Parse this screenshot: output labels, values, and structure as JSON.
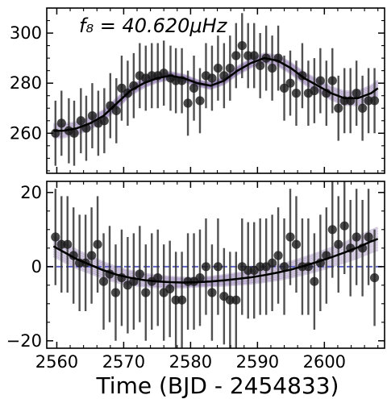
{
  "chart_data": [
    {
      "type": "scatter",
      "panel": "top",
      "annotation": "f₈ = 40.620μHz",
      "xlim": [
        2558.5,
        2609
      ],
      "ylim": [
        244,
        310
      ],
      "yticks": [
        260,
        280,
        300
      ],
      "xticks": [
        2560,
        2570,
        2580,
        2590,
        2600
      ],
      "x_tick_labels_visible": false,
      "grid": false,
      "colors": {
        "points": "#1a1a1a",
        "errorbars": "#333333",
        "model": "#000000",
        "samples": "#6a4c9c"
      },
      "series": [
        {
          "kind": "data_with_errors",
          "x": [
            2559.8,
            2560.7,
            2561.8,
            2562.6,
            2563.6,
            2564.4,
            2565.3,
            2566.2,
            2567.1,
            2568.0,
            2568.9,
            2569.7,
            2570.6,
            2571.5,
            2572.4,
            2573.3,
            2574.2,
            2575.1,
            2576.0,
            2577.0,
            2577.8,
            2578.7,
            2579.6,
            2580.5,
            2581.4,
            2582.3,
            2583.2,
            2584.1,
            2585.0,
            2585.9,
            2586.8,
            2587.7,
            2588.6,
            2589.5,
            2590.4,
            2591.3,
            2592.2,
            2593.1,
            2594.0,
            2594.9,
            2595.8,
            2596.7,
            2597.6,
            2598.5,
            2599.4,
            2600.3,
            2601.2,
            2602.1,
            2603.0,
            2603.9,
            2604.8,
            2605.7,
            2606.6,
            2607.5
          ],
          "y": [
            260,
            264,
            261,
            260,
            265,
            262,
            267,
            264,
            265,
            271,
            269,
            278,
            276,
            279,
            283,
            282,
            283,
            283,
            284,
            282,
            281,
            281,
            272,
            278,
            273,
            283,
            282,
            286,
            283,
            286,
            291,
            295,
            291,
            291,
            287,
            290,
            286,
            290,
            278,
            280,
            276,
            283,
            276,
            277,
            281,
            276,
            281,
            270,
            273,
            273,
            276,
            270,
            273,
            273
          ],
          "yerr": 13
        },
        {
          "kind": "model",
          "x": [
            2559.5,
            2561,
            2563,
            2565,
            2567,
            2569,
            2571,
            2573,
            2575,
            2577,
            2579,
            2581,
            2583,
            2585,
            2587,
            2589,
            2591,
            2593,
            2595,
            2597,
            2599,
            2601,
            2603,
            2605,
            2607,
            2608
          ],
          "y": [
            261,
            261,
            262,
            264,
            267,
            272,
            277,
            280,
            282,
            283,
            282,
            280,
            279,
            281,
            285,
            288,
            290,
            289,
            286,
            282,
            279,
            276,
            274,
            274,
            276,
            278
          ]
        }
      ]
    },
    {
      "type": "scatter",
      "panel": "bottom",
      "xlabel": "Time (BJD - 2454833)",
      "xlim": [
        2558.5,
        2609
      ],
      "ylim": [
        -22,
        23
      ],
      "yticks": [
        -20,
        0,
        20
      ],
      "xticks": [
        2560,
        2570,
        2580,
        2590,
        2600
      ],
      "reference_line_y": 0,
      "grid": false,
      "colors": {
        "points": "#1a1a1a",
        "errorbars": "#333333",
        "model": "#000000",
        "samples": "#6a4c9c",
        "reference_line": "#5a5fc8"
      },
      "series": [
        {
          "kind": "data_with_errors",
          "x": [
            2559.8,
            2560.7,
            2561.6,
            2562.5,
            2563.4,
            2564.3,
            2565.2,
            2566.1,
            2567.0,
            2567.9,
            2568.8,
            2569.7,
            2570.6,
            2571.5,
            2572.4,
            2573.3,
            2574.2,
            2575.1,
            2576.0,
            2576.9,
            2577.8,
            2578.7,
            2579.6,
            2580.5,
            2581.4,
            2582.3,
            2583.2,
            2584.1,
            2585.0,
            2585.9,
            2586.8,
            2587.7,
            2588.6,
            2589.5,
            2590.4,
            2591.3,
            2592.2,
            2593.1,
            2594.0,
            2594.9,
            2595.8,
            2596.7,
            2597.6,
            2598.5,
            2599.4,
            2600.3,
            2601.2,
            2602.1,
            2603.0,
            2603.9,
            2604.8,
            2605.7,
            2606.6,
            2607.5
          ],
          "y": [
            8,
            6,
            6,
            3,
            1,
            1,
            3,
            6,
            -4,
            -2,
            -7,
            -3,
            -5,
            -4,
            -2,
            -7,
            -4,
            -3,
            -7,
            -6,
            -9,
            -9,
            -4,
            -4,
            -3,
            0,
            -7,
            0,
            -8,
            -9,
            -9,
            0,
            -1,
            -1,
            0,
            0,
            1,
            3,
            0,
            8,
            6,
            0,
            0,
            -4,
            1,
            3,
            10,
            6,
            11,
            5,
            8,
            5,
            8,
            -3
          ],
          "yerr": 13
        },
        {
          "kind": "model",
          "x": [
            2559.5,
            2561,
            2563,
            2565,
            2567,
            2569,
            2571,
            2573,
            2575,
            2577,
            2579,
            2581,
            2583,
            2585,
            2587,
            2589,
            2591,
            2593,
            2595,
            2597,
            2599,
            2601,
            2603,
            2605,
            2607,
            2608
          ],
          "y": [
            5.5,
            4,
            2,
            0.5,
            -1,
            -2.2,
            -3,
            -3.6,
            -4,
            -4.2,
            -4.3,
            -4.2,
            -4,
            -3.7,
            -3.3,
            -2.9,
            -2.3,
            -1.6,
            -0.8,
            0.2,
            1.3,
            2.5,
            3.8,
            5.2,
            6.8,
            7.5
          ]
        }
      ]
    }
  ]
}
